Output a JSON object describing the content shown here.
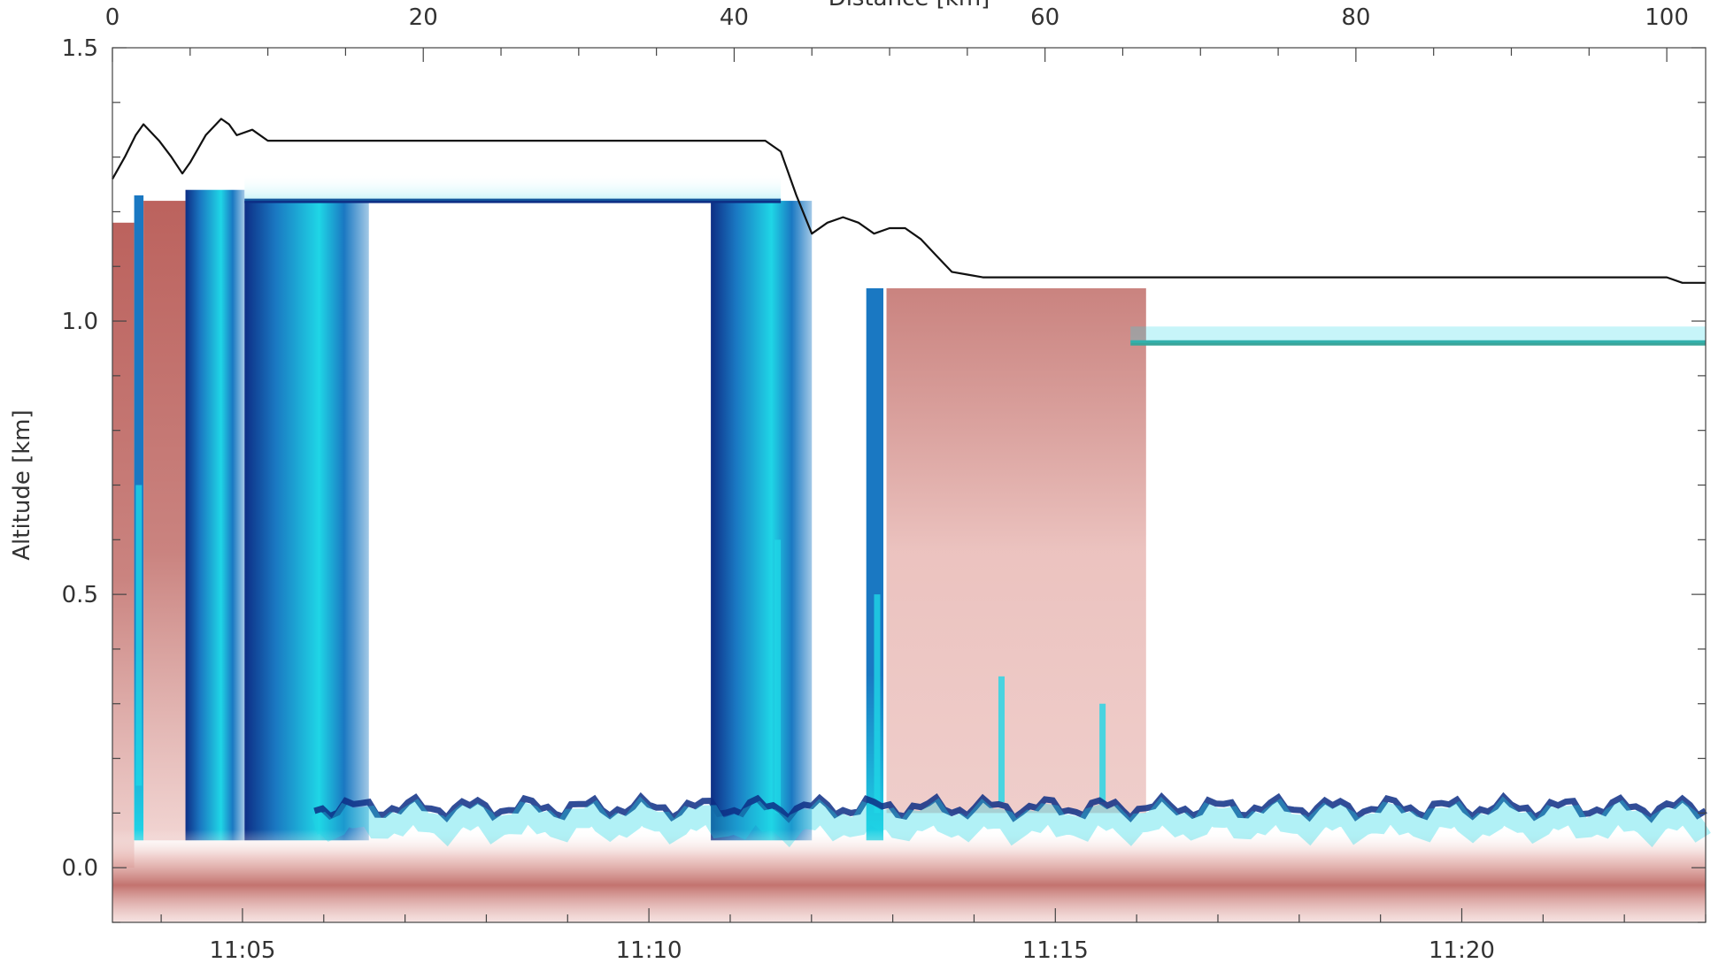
{
  "chart_data": {
    "type": "heatmap",
    "title": "",
    "top_axis": {
      "label": "Distance [km]",
      "range": [
        0,
        102.5
      ],
      "ticks": [
        0,
        20,
        40,
        60,
        80,
        100
      ],
      "tick_labels": [
        "0",
        "20",
        "40",
        "60",
        "80",
        "100"
      ]
    },
    "bottom_axis": {
      "label": "",
      "range_minutes": [
        663.4,
        683.0
      ],
      "ticks_minutes": [
        665,
        670,
        675,
        680
      ],
      "tick_labels": [
        "11:05",
        "11:10",
        "11:15",
        "11:20"
      ]
    },
    "y_axis": {
      "label": "Altitude [km]",
      "range": [
        -0.1,
        1.5
      ],
      "ticks": [
        0.0,
        0.5,
        1.0,
        1.5
      ],
      "tick_labels": [
        "0.0",
        "0.5",
        "1.0",
        "1.5"
      ]
    },
    "aircraft_altitude": {
      "x_km": [
        0,
        0.8,
        1.5,
        2,
        3,
        3.8,
        4.5,
        5,
        6,
        7,
        7.5,
        8,
        9,
        10,
        11,
        12,
        13,
        14,
        16,
        20,
        30,
        40,
        42,
        43,
        44,
        45,
        46,
        47,
        48,
        49,
        50,
        51,
        52,
        53,
        54,
        55,
        56,
        58,
        60,
        70,
        80,
        90,
        100,
        101,
        102.5
      ],
      "y_km": [
        1.26,
        1.3,
        1.34,
        1.36,
        1.33,
        1.3,
        1.27,
        1.29,
        1.34,
        1.37,
        1.36,
        1.34,
        1.35,
        1.33,
        1.33,
        1.33,
        1.33,
        1.33,
        1.33,
        1.33,
        1.33,
        1.33,
        1.33,
        1.31,
        1.23,
        1.16,
        1.18,
        1.19,
        1.18,
        1.16,
        1.17,
        1.17,
        1.15,
        1.12,
        1.09,
        1.085,
        1.08,
        1.08,
        1.08,
        1.08,
        1.08,
        1.08,
        1.08,
        1.07,
        1.07
      ]
    },
    "cloud_blocks": [
      {
        "kind": "warm",
        "x_range_km": [
          0,
          1.4
        ],
        "top_km": 1.18,
        "bottom_km": 0.0
      },
      {
        "kind": "cool",
        "x_range_km": [
          1.4,
          2.0
        ],
        "top_km": 1.23,
        "bottom_km": 0.05
      },
      {
        "kind": "warm",
        "x_range_km": [
          2.0,
          4.7
        ],
        "top_km": 1.22,
        "bottom_km": 0.05
      },
      {
        "kind": "cool",
        "x_range_km": [
          4.7,
          8.5
        ],
        "top_km": 1.24,
        "bottom_km": 0.05
      },
      {
        "kind": "cool",
        "x_range_km": [
          8.5,
          16.5
        ],
        "top_km": 1.22,
        "bottom_km": 0.05
      },
      {
        "kind": "cool",
        "x_range_km": [
          38.5,
          45.0
        ],
        "top_km": 1.22,
        "bottom_km": 0.05
      },
      {
        "kind": "cool",
        "x_range_km": [
          48.5,
          49.6
        ],
        "top_km": 1.06,
        "bottom_km": 0.05
      },
      {
        "kind": "warm",
        "x_range_km": [
          49.8,
          66.5
        ],
        "top_km": 1.06,
        "bottom_km": 0.1
      }
    ],
    "layers": [
      {
        "kind": "top-line",
        "x_range_km": [
          8.5,
          43.0
        ],
        "y_km": 1.22
      },
      {
        "kind": "stratus-line",
        "x_range_km": [
          65.5,
          102.5
        ],
        "y_km": 0.96
      },
      {
        "kind": "boundary-line",
        "x_range_km": [
          13.0,
          102.5
        ],
        "y_km": 0.11
      },
      {
        "kind": "surface-band",
        "x_range_km": [
          0,
          102.5
        ],
        "y_km": 0.0
      }
    ],
    "grid": false,
    "colors": {
      "warm": "#b85a55",
      "warm_light": "#e8b8b4",
      "cool": "#1a78c2",
      "cool_dark": "#0d2e85",
      "cyan": "#1fd6e6",
      "teal": "#3aa59a",
      "aircraft": "#111111"
    }
  }
}
